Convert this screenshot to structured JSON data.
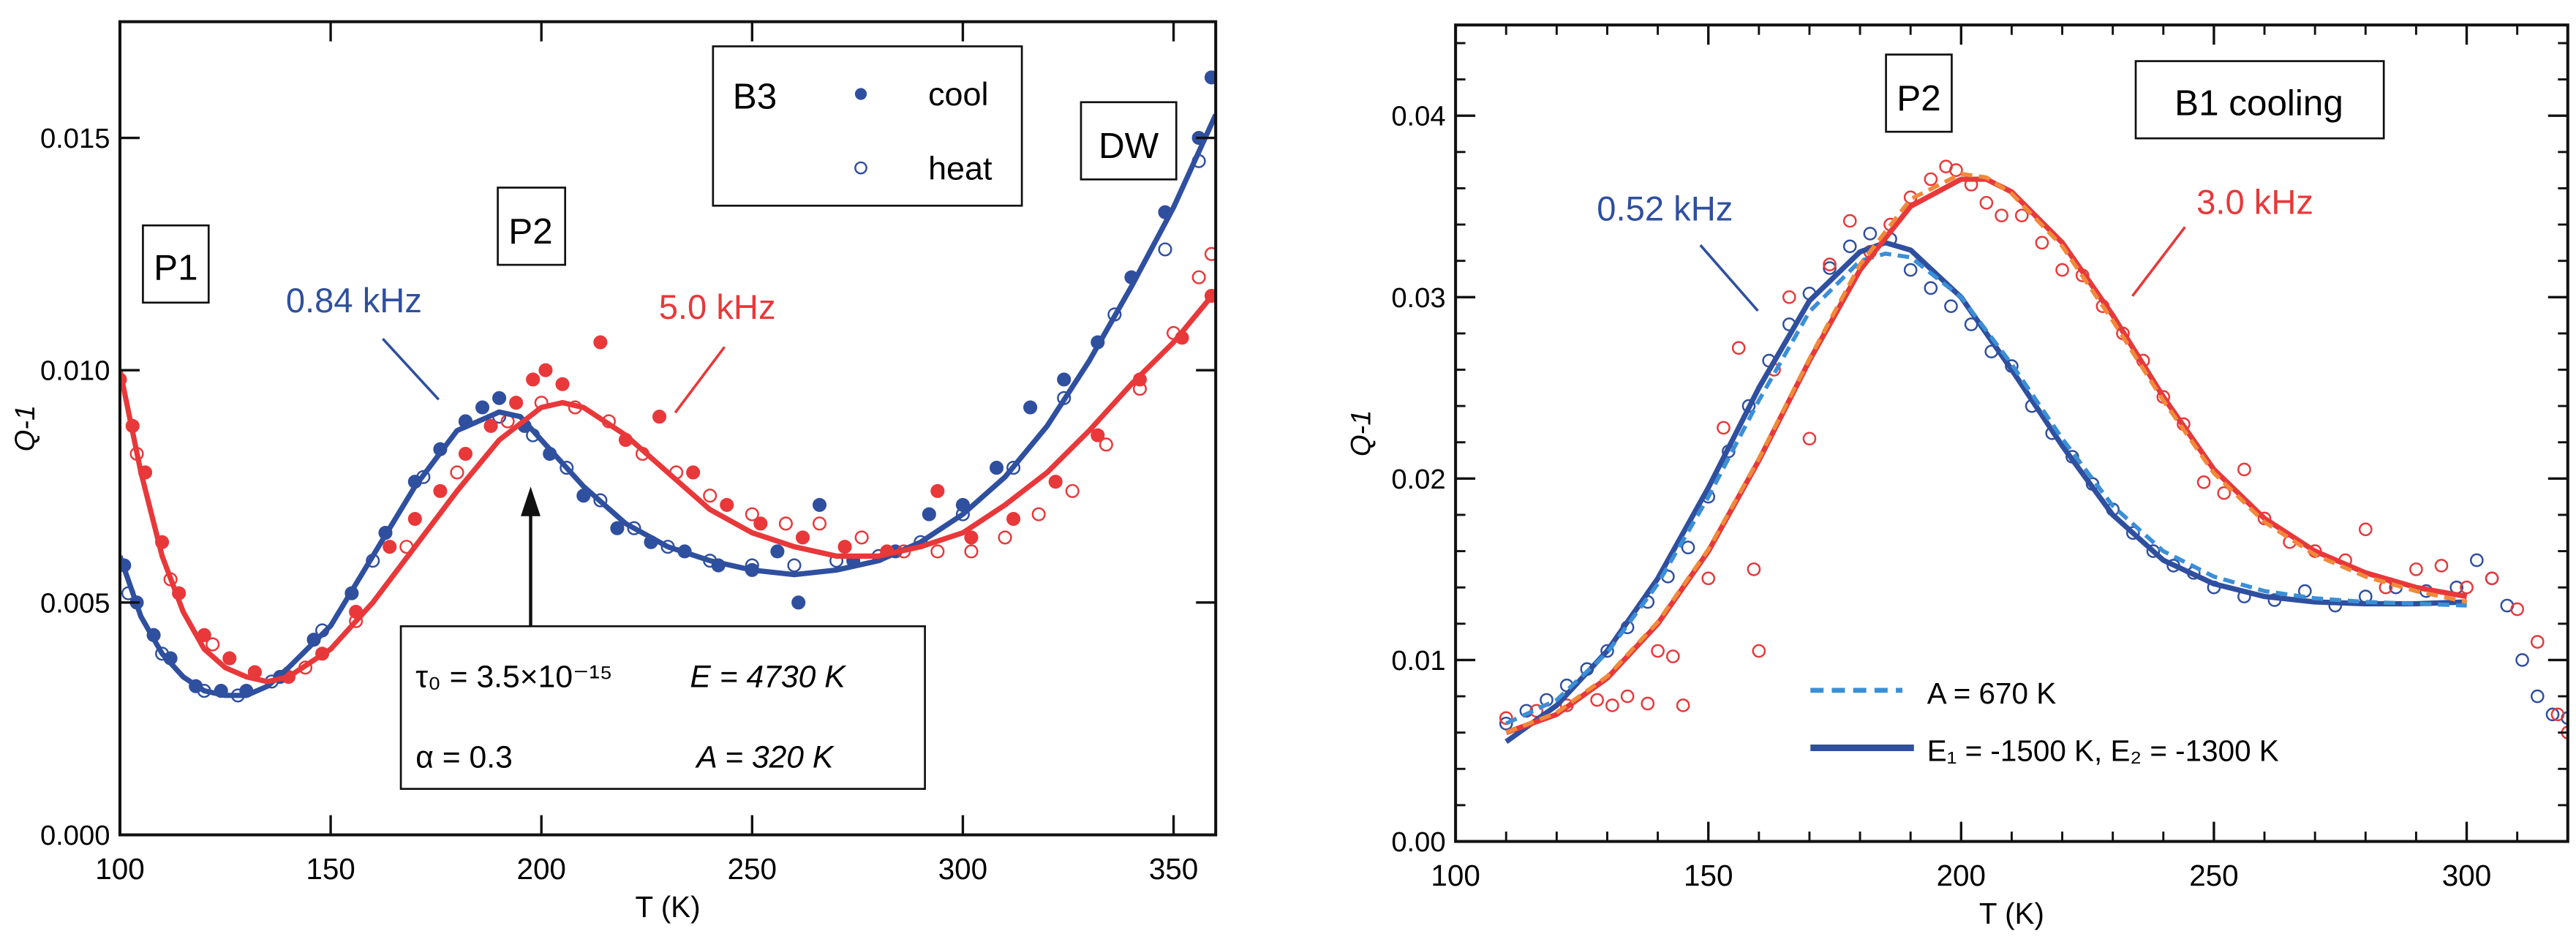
{
  "chart_data": [
    {
      "type": "scatter",
      "xlabel": "T (K)",
      "ylabel": "Q-1",
      "xlim": [
        100,
        360
      ],
      "ylim": [
        0,
        0.0175
      ],
      "xticks": [
        "100",
        "150",
        "200",
        "250",
        "300",
        "350"
      ],
      "yticks": [
        "0.000",
        "0.005",
        "0.010",
        "0.015"
      ],
      "legend": {
        "title": "B3",
        "entries": [
          "cool",
          "heat"
        ],
        "placement": "top-right"
      },
      "labels": {
        "p1": "P1",
        "p2": "P2",
        "dw": "DW",
        "f1": "0.84 kHz",
        "f2": "5.0 kHz"
      },
      "params": {
        "tau": "τ₀ = 3.5×10⁻¹⁵",
        "E": "E = 4730 K",
        "alpha": "α = 0.3",
        "A": "A = 320 K"
      },
      "colors": {
        "blue": "#2f4f9f",
        "red": "#e8383a"
      },
      "series": [
        {
          "name": "0.84 kHz fit",
          "color": "#2f4f9f",
          "style": "line",
          "x": [
            100,
            105,
            110,
            115,
            120,
            125,
            130,
            135,
            140,
            150,
            160,
            170,
            180,
            190,
            195,
            200,
            210,
            220,
            230,
            240,
            250,
            260,
            270,
            280,
            290,
            300,
            310,
            320,
            330,
            340,
            350,
            360
          ],
          "y": [
            0.006,
            0.0047,
            0.0039,
            0.0034,
            0.0031,
            0.003,
            0.003,
            0.0032,
            0.0036,
            0.0045,
            0.006,
            0.0075,
            0.0087,
            0.0091,
            0.009,
            0.0085,
            0.0075,
            0.0067,
            0.0062,
            0.0059,
            0.0057,
            0.0056,
            0.0057,
            0.0059,
            0.0063,
            0.0069,
            0.0077,
            0.0088,
            0.0102,
            0.0118,
            0.0135,
            0.0155
          ]
        },
        {
          "name": "5.0 kHz fit",
          "color": "#e8383a",
          "style": "line",
          "x": [
            100,
            105,
            110,
            115,
            120,
            125,
            130,
            135,
            140,
            150,
            160,
            170,
            180,
            190,
            200,
            205,
            210,
            220,
            230,
            240,
            250,
            260,
            270,
            280,
            290,
            300,
            310,
            320,
            330,
            340,
            350,
            360
          ],
          "y": [
            0.01,
            0.0078,
            0.006,
            0.0048,
            0.004,
            0.0036,
            0.0034,
            0.0033,
            0.0034,
            0.004,
            0.005,
            0.0062,
            0.0074,
            0.0085,
            0.0092,
            0.0093,
            0.0092,
            0.0086,
            0.0078,
            0.007,
            0.0065,
            0.0062,
            0.006,
            0.006,
            0.0062,
            0.0065,
            0.0071,
            0.0078,
            0.0087,
            0.0097,
            0.0106,
            0.0117
          ]
        },
        {
          "name": "0.84 kHz cool",
          "color": "#2f4f9f",
          "style": "filled",
          "x": [
            101,
            104,
            108,
            112,
            118,
            124,
            130,
            138,
            146,
            155,
            163,
            170,
            176,
            182,
            186,
            190,
            196,
            202,
            210,
            218,
            226,
            234,
            242,
            250,
            256,
            261,
            266,
            274,
            284,
            292,
            300,
            308,
            316,
            324,
            332,
            340,
            348,
            356,
            359
          ],
          "y": [
            0.0058,
            0.005,
            0.0043,
            0.0038,
            0.0032,
            0.0031,
            0.0031,
            0.0034,
            0.0042,
            0.0052,
            0.0065,
            0.0076,
            0.0083,
            0.0089,
            0.0092,
            0.0094,
            0.0088,
            0.0082,
            0.0073,
            0.0066,
            0.0063,
            0.0061,
            0.0058,
            0.0057,
            0.0061,
            0.005,
            0.0071,
            0.0059,
            0.0061,
            0.0069,
            0.0071,
            0.0079,
            0.0092,
            0.0098,
            0.0106,
            0.012,
            0.0134,
            0.015,
            0.0163
          ]
        },
        {
          "name": "0.84 kHz heat",
          "color": "#2f4f9f",
          "style": "open",
          "x": [
            102,
            110,
            120,
            128,
            136,
            148,
            160,
            172,
            182,
            190,
            198,
            206,
            214,
            222,
            230,
            240,
            250,
            260,
            270,
            280,
            290,
            300,
            312,
            324,
            336,
            348,
            356
          ],
          "y": [
            0.0052,
            0.0039,
            0.0031,
            0.003,
            0.0033,
            0.0044,
            0.0059,
            0.0077,
            0.0089,
            0.009,
            0.0086,
            0.0079,
            0.0072,
            0.0066,
            0.0062,
            0.0059,
            0.0058,
            0.0058,
            0.0059,
            0.006,
            0.0063,
            0.0069,
            0.0079,
            0.0094,
            0.0112,
            0.0126,
            0.0145
          ]
        },
        {
          "name": "5.0 kHz cool",
          "color": "#e8383a",
          "style": "filled",
          "x": [
            100,
            103,
            106,
            110,
            114,
            120,
            126,
            132,
            140,
            148,
            156,
            164,
            170,
            176,
            182,
            188,
            194,
            198,
            201,
            205,
            214,
            220,
            228,
            236,
            244,
            252,
            262,
            272,
            282,
            294,
            302,
            312,
            322,
            332,
            342,
            352,
            359
          ],
          "y": [
            0.0098,
            0.0088,
            0.0078,
            0.0063,
            0.0052,
            0.0043,
            0.0038,
            0.0035,
            0.0034,
            0.0039,
            0.0048,
            0.0062,
            0.0068,
            0.0074,
            0.0082,
            0.0088,
            0.0093,
            0.0098,
            0.01,
            0.0097,
            0.0106,
            0.0085,
            0.009,
            0.0078,
            0.0071,
            0.0067,
            0.0064,
            0.0062,
            0.0061,
            0.0074,
            0.0064,
            0.0068,
            0.0076,
            0.0086,
            0.0098,
            0.0107,
            0.0116
          ]
        },
        {
          "name": "5.0 kHz heat",
          "color": "#e8383a",
          "style": "open",
          "x": [
            104,
            112,
            122,
            132,
            144,
            156,
            168,
            180,
            192,
            200,
            208,
            216,
            224,
            232,
            240,
            250,
            258,
            266,
            276,
            286,
            294,
            302,
            310,
            318,
            326,
            334,
            342,
            350,
            356,
            359
          ],
          "y": [
            0.0082,
            0.0055,
            0.0041,
            0.0035,
            0.0036,
            0.0046,
            0.0062,
            0.0078,
            0.0089,
            0.0093,
            0.0092,
            0.0089,
            0.0082,
            0.0078,
            0.0073,
            0.0069,
            0.0067,
            0.0067,
            0.0064,
            0.0061,
            0.0061,
            0.0061,
            0.0064,
            0.0069,
            0.0074,
            0.0084,
            0.0096,
            0.0108,
            0.012,
            0.0125
          ]
        }
      ]
    },
    {
      "type": "scatter",
      "xlabel": "T (K)",
      "ylabel": "Q-1",
      "xlim": [
        100,
        320
      ],
      "ylim": [
        0,
        0.045
      ],
      "xticks": [
        "100",
        "150",
        "200",
        "250",
        "300"
      ],
      "yticks": [
        "0.00",
        "0.01",
        "0.02",
        "0.03",
        "0.04"
      ],
      "labels": {
        "p2": "P2",
        "box": "B1 cooling",
        "f1": "0.52 kHz",
        "f2": "3.0 kHz"
      },
      "legend": {
        "entries": [
          "A = 670 K",
          "E₁ = -1500 K,   E₂ = -1300 K"
        ],
        "placement": "bottom-center"
      },
      "colors": {
        "blue": "#2f4f9f",
        "lightblue": "#3b8fd6",
        "red": "#e8383a",
        "orange": "#f08a3a"
      },
      "series": [
        {
          "name": "0.52 kHz data",
          "color": "#2f4f9f",
          "style": "open",
          "x": [
            110,
            114,
            118,
            122,
            126,
            130,
            134,
            138,
            142,
            146,
            150,
            154,
            158,
            162,
            166,
            170,
            174,
            178,
            182,
            186,
            190,
            194,
            198,
            202,
            206,
            210,
            214,
            218,
            222,
            226,
            230,
            234,
            238,
            242,
            246,
            250,
            256,
            262,
            268,
            274,
            280,
            286,
            292,
            298,
            302,
            305,
            308,
            311,
            314,
            317,
            320
          ],
          "y": [
            0.0065,
            0.0072,
            0.0078,
            0.0086,
            0.0095,
            0.0105,
            0.0118,
            0.0132,
            0.0146,
            0.0162,
            0.019,
            0.0215,
            0.024,
            0.0265,
            0.0285,
            0.0302,
            0.0316,
            0.0328,
            0.0335,
            0.0332,
            0.0315,
            0.0305,
            0.0295,
            0.0285,
            0.027,
            0.0262,
            0.024,
            0.0225,
            0.0212,
            0.0197,
            0.0183,
            0.017,
            0.016,
            0.0152,
            0.0148,
            0.014,
            0.0135,
            0.0133,
            0.0138,
            0.013,
            0.0135,
            0.014,
            0.0138,
            0.014,
            0.0155,
            0.0145,
            0.013,
            0.01,
            0.008,
            0.007,
            0.0068
          ]
        },
        {
          "name": "3.0 kHz data",
          "color": "#e8383a",
          "style": "open",
          "x": [
            110,
            116,
            122,
            128,
            131,
            134,
            138,
            140,
            143,
            145,
            150,
            153,
            156,
            159,
            160,
            163,
            166,
            170,
            174,
            178,
            182,
            186,
            190,
            194,
            197,
            199,
            202,
            205,
            208,
            212,
            216,
            220,
            224,
            228,
            232,
            236,
            240,
            244,
            248,
            252,
            256,
            260,
            265,
            270,
            276,
            280,
            284,
            290,
            295,
            300,
            305,
            310,
            314,
            318,
            320
          ],
          "y": [
            0.0068,
            0.0072,
            0.0075,
            0.0078,
            0.0075,
            0.008,
            0.0076,
            0.0105,
            0.0102,
            0.0075,
            0.0145,
            0.0228,
            0.0272,
            0.015,
            0.0105,
            0.026,
            0.03,
            0.0222,
            0.0318,
            0.0342,
            0.0325,
            0.034,
            0.0355,
            0.0365,
            0.0372,
            0.037,
            0.0362,
            0.0352,
            0.0345,
            0.0345,
            0.033,
            0.0315,
            0.0312,
            0.0295,
            0.028,
            0.0265,
            0.0245,
            0.023,
            0.0198,
            0.0192,
            0.0205,
            0.0178,
            0.0165,
            0.016,
            0.0155,
            0.0172,
            0.014,
            0.015,
            0.0152,
            0.014,
            0.0145,
            0.0128,
            0.011,
            0.007,
            0.006
          ]
        },
        {
          "name": "0.52 kHz fit",
          "color": "#2f4f9f",
          "style": "line",
          "x": [
            110,
            120,
            130,
            140,
            150,
            160,
            170,
            180,
            185,
            190,
            200,
            210,
            220,
            230,
            240,
            250,
            260,
            270,
            280,
            290,
            300
          ],
          "y": [
            0.0055,
            0.0075,
            0.0105,
            0.0145,
            0.0195,
            0.025,
            0.0298,
            0.0325,
            0.033,
            0.0326,
            0.03,
            0.026,
            0.0218,
            0.018,
            0.0155,
            0.0142,
            0.0135,
            0.0132,
            0.0131,
            0.0131,
            0.0132
          ]
        },
        {
          "name": "0.52 kHz A fit",
          "color": "#3b8fd6",
          "style": "dash",
          "x": [
            110,
            120,
            130,
            140,
            150,
            160,
            170,
            180,
            185,
            190,
            200,
            210,
            220,
            230,
            240,
            250,
            260,
            270,
            280,
            290,
            300
          ],
          "y": [
            0.0065,
            0.0078,
            0.0104,
            0.0142,
            0.019,
            0.0243,
            0.0292,
            0.032,
            0.0324,
            0.0322,
            0.03,
            0.0263,
            0.0222,
            0.0185,
            0.016,
            0.0146,
            0.0138,
            0.0134,
            0.0132,
            0.0131,
            0.013
          ]
        },
        {
          "name": "3.0 kHz fit",
          "color": "#e8383a",
          "style": "line",
          "x": [
            110,
            120,
            130,
            140,
            150,
            160,
            170,
            180,
            190,
            200,
            205,
            210,
            220,
            230,
            240,
            250,
            260,
            270,
            280,
            290,
            300
          ],
          "y": [
            0.006,
            0.007,
            0.009,
            0.012,
            0.016,
            0.021,
            0.0265,
            0.0315,
            0.035,
            0.0365,
            0.0365,
            0.0358,
            0.033,
            0.029,
            0.0245,
            0.0205,
            0.0178,
            0.016,
            0.0148,
            0.014,
            0.0135
          ]
        },
        {
          "name": "3.0 kHz A fit",
          "color": "#f08a3a",
          "style": "dash",
          "x": [
            110,
            120,
            130,
            140,
            150,
            160,
            170,
            180,
            190,
            200,
            205,
            210,
            220,
            230,
            240,
            250,
            260,
            270,
            280,
            290,
            300
          ],
          "y": [
            0.006,
            0.0071,
            0.0091,
            0.0121,
            0.0161,
            0.0211,
            0.0266,
            0.0318,
            0.0354,
            0.0368,
            0.0366,
            0.0357,
            0.0328,
            0.0287,
            0.0243,
            0.0203,
            0.0176,
            0.0158,
            0.0146,
            0.0138,
            0.0132
          ]
        }
      ]
    }
  ]
}
